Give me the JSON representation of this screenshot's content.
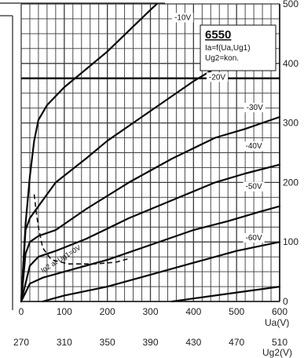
{
  "chart_data": {
    "type": "line",
    "legend": {
      "title": "6550",
      "lines": [
        "Ia=f(Ua,Ug1)",
        "Ug2=kon."
      ]
    },
    "x_axis": {
      "label": "Ua(V)",
      "range": [
        0,
        600
      ],
      "ticks": [
        "0",
        "100",
        "200",
        "300",
        "400",
        "500",
        "600"
      ],
      "grid_step": 20
    },
    "x2_axis": {
      "label": "Ug2(V)",
      "ticks": [
        "270",
        "310",
        "350",
        "390",
        "430",
        "470",
        "510"
      ]
    },
    "y_axis": {
      "range": [
        0,
        500
      ],
      "ticks": [
        "0",
        "100",
        "200",
        "300",
        "400",
        "500"
      ],
      "grid_step": 25
    },
    "series": [
      {
        "name": "-10V",
        "points": [
          [
            0,
            0
          ],
          [
            10,
            130
          ],
          [
            20,
            210
          ],
          [
            30,
            270
          ],
          [
            40,
            305
          ],
          [
            60,
            330
          ],
          [
            100,
            360
          ],
          [
            150,
            390
          ],
          [
            200,
            420
          ],
          [
            250,
            455
          ],
          [
            300,
            490
          ],
          [
            315,
            500
          ]
        ]
      },
      {
        "name": "-20V",
        "points": [
          [
            0,
            0
          ],
          [
            10,
            120
          ],
          [
            20,
            140
          ],
          [
            40,
            160
          ],
          [
            80,
            200
          ],
          [
            150,
            240
          ],
          [
            200,
            270
          ],
          [
            300,
            320
          ],
          [
            400,
            370
          ],
          [
            450,
            392
          ]
        ]
      },
      {
        "name": "-30V",
        "points": [
          [
            0,
            0
          ],
          [
            10,
            80
          ],
          [
            20,
            100
          ],
          [
            40,
            110
          ],
          [
            80,
            120
          ],
          [
            150,
            155
          ],
          [
            250,
            200
          ],
          [
            350,
            240
          ],
          [
            450,
            275
          ],
          [
            520,
            290
          ],
          [
            600,
            310
          ]
        ]
      },
      {
        "name": "-40V",
        "points": [
          [
            0,
            0
          ],
          [
            20,
            60
          ],
          [
            40,
            75
          ],
          [
            80,
            85
          ],
          [
            150,
            105
          ],
          [
            250,
            140
          ],
          [
            350,
            170
          ],
          [
            450,
            200
          ],
          [
            520,
            215
          ],
          [
            600,
            230
          ]
        ]
      },
      {
        "name": "-50V",
        "points": [
          [
            0,
            0
          ],
          [
            20,
            30
          ],
          [
            50,
            40
          ],
          [
            100,
            50
          ],
          [
            200,
            70
          ],
          [
            300,
            95
          ],
          [
            400,
            120
          ],
          [
            480,
            135
          ],
          [
            550,
            150
          ],
          [
            600,
            160
          ]
        ]
      },
      {
        "name": "-60V",
        "points": [
          [
            50,
            0
          ],
          [
            100,
            10
          ],
          [
            200,
            25
          ],
          [
            300,
            45
          ],
          [
            400,
            65
          ],
          [
            500,
            85
          ],
          [
            600,
            100
          ]
        ]
      },
      {
        "name": "",
        "points": [
          [
            350,
            0
          ],
          [
            400,
            5
          ],
          [
            500,
            15
          ],
          [
            600,
            25
          ]
        ]
      }
    ],
    "curve_labels": [
      {
        "text": "-10V",
        "x": 375,
        "y": 473
      },
      {
        "text": "-20V",
        "x": 455,
        "y": 373
      },
      {
        "text": "-30V",
        "x": 542,
        "y": 322
      },
      {
        "text": "-40V",
        "x": 540,
        "y": 257
      },
      {
        "text": "-50V",
        "x": 540,
        "y": 189
      },
      {
        "text": "-60V",
        "x": 540,
        "y": 103
      }
    ],
    "reference_lines": [
      375
    ],
    "screen_curve": {
      "label": "Ig2 at Ug1=0V",
      "points": [
        [
          30,
          180
        ],
        [
          35,
          150
        ],
        [
          40,
          125
        ],
        [
          50,
          90
        ],
        [
          70,
          70
        ],
        [
          110,
          63
        ],
        [
          170,
          63
        ],
        [
          220,
          66
        ],
        [
          250,
          72
        ]
      ]
    }
  }
}
